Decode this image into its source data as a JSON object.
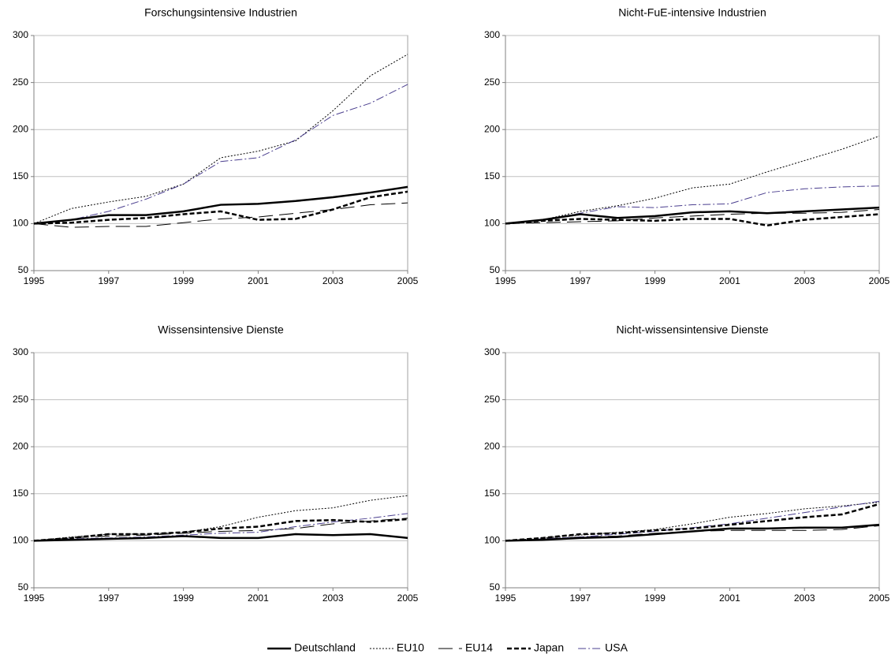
{
  "chart_data": [
    {
      "type": "line",
      "title": "Forschungsintensive Industrien",
      "x": [
        1995,
        1996,
        1997,
        1998,
        1999,
        2000,
        2001,
        2002,
        2003,
        2004,
        2005
      ],
      "xlim": [
        1995,
        2005
      ],
      "xticks": [
        1995,
        1997,
        1999,
        2001,
        2003,
        2005
      ],
      "ylim": [
        50,
        300
      ],
      "yticks": [
        50,
        100,
        150,
        200,
        250,
        300
      ],
      "grid": true,
      "series": [
        {
          "name": "Deutschland",
          "color": "#000000",
          "style": "solid-bold",
          "values": [
            100,
            104,
            109,
            109,
            113,
            120,
            121,
            124,
            128,
            133,
            139
          ]
        },
        {
          "name": "EU10",
          "color": "#000000",
          "style": "dotted",
          "values": [
            100,
            116,
            123,
            129,
            142,
            170,
            177,
            188,
            220,
            257,
            280
          ]
        },
        {
          "name": "EU14",
          "color": "#000000",
          "style": "long-dash",
          "values": [
            100,
            96,
            97,
            97,
            101,
            105,
            107,
            111,
            115,
            120,
            122
          ]
        },
        {
          "name": "Japan",
          "color": "#000000",
          "style": "dashed-bold",
          "values": [
            100,
            101,
            104,
            106,
            110,
            113,
            104,
            105,
            115,
            128,
            134
          ]
        },
        {
          "name": "USA",
          "color": "#4b3f8f",
          "style": "dash-dot",
          "values": [
            100,
            104,
            113,
            126,
            142,
            166,
            170,
            189,
            215,
            228,
            248
          ]
        }
      ]
    },
    {
      "type": "line",
      "title": "Nicht-FuE-intensive Industrien",
      "x": [
        1995,
        1996,
        1997,
        1998,
        1999,
        2000,
        2001,
        2002,
        2003,
        2004,
        2005
      ],
      "xlim": [
        1995,
        2005
      ],
      "xticks": [
        1995,
        1997,
        1999,
        2001,
        2003,
        2005
      ],
      "ylim": [
        50,
        300
      ],
      "yticks": [
        50,
        100,
        150,
        200,
        250,
        300
      ],
      "grid": true,
      "series": [
        {
          "name": "Deutschland",
          "color": "#000000",
          "style": "solid-bold",
          "values": [
            100,
            104,
            110,
            106,
            108,
            112,
            113,
            111,
            113,
            115,
            117
          ]
        },
        {
          "name": "EU10",
          "color": "#000000",
          "style": "dotted",
          "values": [
            100,
            104,
            113,
            119,
            127,
            138,
            142,
            155,
            167,
            179,
            193
          ]
        },
        {
          "name": "EU14",
          "color": "#000000",
          "style": "long-dash",
          "values": [
            100,
            101,
            102,
            103,
            106,
            108,
            110,
            111,
            111,
            112,
            115
          ]
        },
        {
          "name": "Japan",
          "color": "#000000",
          "style": "dashed-bold",
          "values": [
            100,
            103,
            105,
            104,
            103,
            105,
            105,
            98,
            104,
            107,
            110
          ]
        },
        {
          "name": "USA",
          "color": "#4b3f8f",
          "style": "dash-dot",
          "values": [
            100,
            104,
            111,
            118,
            117,
            120,
            121,
            133,
            137,
            139,
            140
          ]
        }
      ]
    },
    {
      "type": "line",
      "title": "Wissensintensive Dienste",
      "x": [
        1995,
        1996,
        1997,
        1998,
        1999,
        2000,
        2001,
        2002,
        2003,
        2004,
        2005
      ],
      "xlim": [
        1995,
        2005
      ],
      "xticks": [
        1995,
        1997,
        1999,
        2001,
        2003,
        2005
      ],
      "ylim": [
        50,
        300
      ],
      "yticks": [
        50,
        100,
        150,
        200,
        250,
        300
      ],
      "grid": true,
      "series": [
        {
          "name": "Deutschland",
          "color": "#000000",
          "style": "solid-bold",
          "values": [
            100,
            101,
            102,
            103,
            105,
            103,
            103,
            107,
            106,
            107,
            103
          ]
        },
        {
          "name": "EU10",
          "color": "#000000",
          "style": "dotted",
          "values": [
            100,
            104,
            107,
            107,
            109,
            115,
            125,
            132,
            135,
            143,
            148
          ]
        },
        {
          "name": "EU14",
          "color": "#000000",
          "style": "long-dash",
          "values": [
            100,
            103,
            105,
            106,
            108,
            110,
            111,
            113,
            118,
            121,
            124
          ]
        },
        {
          "name": "Japan",
          "color": "#000000",
          "style": "dashed-bold",
          "values": [
            100,
            103,
            107,
            107,
            109,
            113,
            115,
            121,
            122,
            120,
            123
          ]
        },
        {
          "name": "USA",
          "color": "#4b3f8f",
          "style": "dash-dot",
          "values": [
            100,
            102,
            103,
            104,
            106,
            108,
            109,
            115,
            120,
            124,
            129
          ]
        }
      ]
    },
    {
      "type": "line",
      "title": "Nicht-wissensintensive Dienste",
      "x": [
        1995,
        1996,
        1997,
        1998,
        1999,
        2000,
        2001,
        2002,
        2003,
        2004,
        2005
      ],
      "xlim": [
        1995,
        2005
      ],
      "xticks": [
        1995,
        1997,
        1999,
        2001,
        2003,
        2005
      ],
      "ylim": [
        50,
        300
      ],
      "yticks": [
        50,
        100,
        150,
        200,
        250,
        300
      ],
      "grid": true,
      "series": [
        {
          "name": "Deutschland",
          "color": "#000000",
          "style": "solid-bold",
          "values": [
            100,
            101,
            103,
            104,
            107,
            110,
            113,
            113,
            114,
            114,
            117
          ]
        },
        {
          "name": "EU10",
          "color": "#000000",
          "style": "dotted",
          "values": [
            100,
            103,
            106,
            109,
            112,
            118,
            125,
            129,
            134,
            137,
            141
          ]
        },
        {
          "name": "EU14",
          "color": "#000000",
          "style": "long-dash",
          "values": [
            100,
            102,
            104,
            105,
            108,
            110,
            111,
            111,
            111,
            112,
            116
          ]
        },
        {
          "name": "Japan",
          "color": "#000000",
          "style": "dashed-bold",
          "values": [
            100,
            103,
            107,
            108,
            111,
            113,
            117,
            121,
            125,
            128,
            139
          ]
        },
        {
          "name": "USA",
          "color": "#4b3f8f",
          "style": "dash-dot",
          "values": [
            100,
            102,
            104,
            107,
            110,
            114,
            118,
            124,
            130,
            136,
            142
          ]
        }
      ]
    }
  ]
}
